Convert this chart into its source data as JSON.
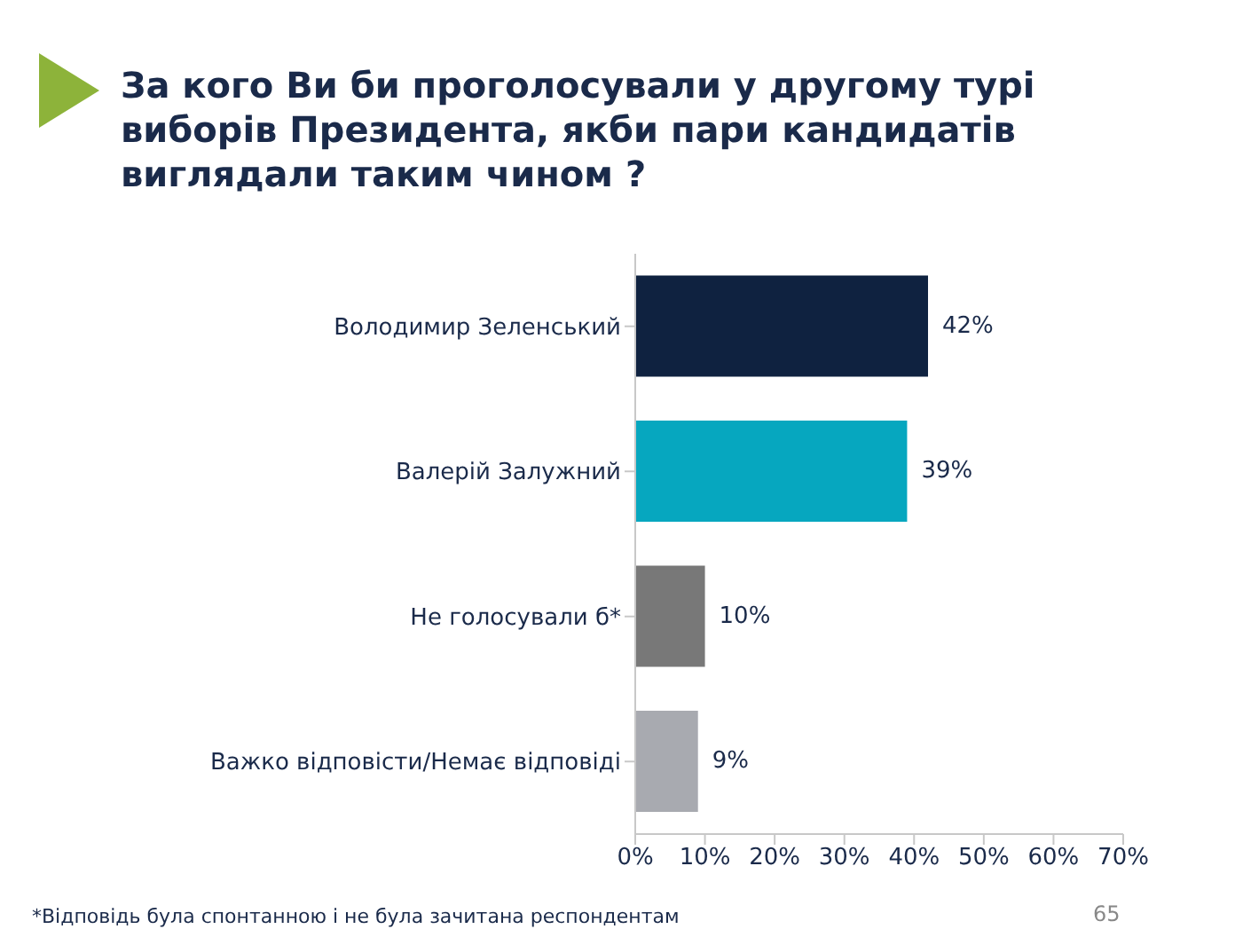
{
  "chart_data": {
    "type": "bar",
    "orientation": "horizontal",
    "title": "За кого Ви би проголосували у другому турі виборів Президента, якби пари кандидатів виглядали таким чином ?",
    "categories": [
      "Володимир Зеленський",
      "Валерій Залужний",
      "Не голосували б*",
      "Важко відповісти/Немає відповіді"
    ],
    "values": [
      42,
      39,
      10,
      9
    ],
    "value_labels": [
      "42%",
      "39%",
      "10%",
      "9%"
    ],
    "colors": [
      "#0f2240",
      "#06a7bf",
      "#787878",
      "#a8aab0"
    ],
    "xlim": [
      0,
      70
    ],
    "xticks": [
      {
        "value": 0,
        "label": "0%"
      },
      {
        "value": 10,
        "label": "10%"
      },
      {
        "value": 20,
        "label": "20%"
      },
      {
        "value": 30,
        "label": "30%"
      },
      {
        "value": 40,
        "label": "40%"
      },
      {
        "value": 50,
        "label": "50%"
      },
      {
        "value": 60,
        "label": "60%"
      },
      {
        "value": 70,
        "label": "70%"
      }
    ],
    "grid": false,
    "legend": false,
    "annotations": [
      "65",
      "*Відповідь була спонтанною і не була зачитана респондентам"
    ]
  }
}
